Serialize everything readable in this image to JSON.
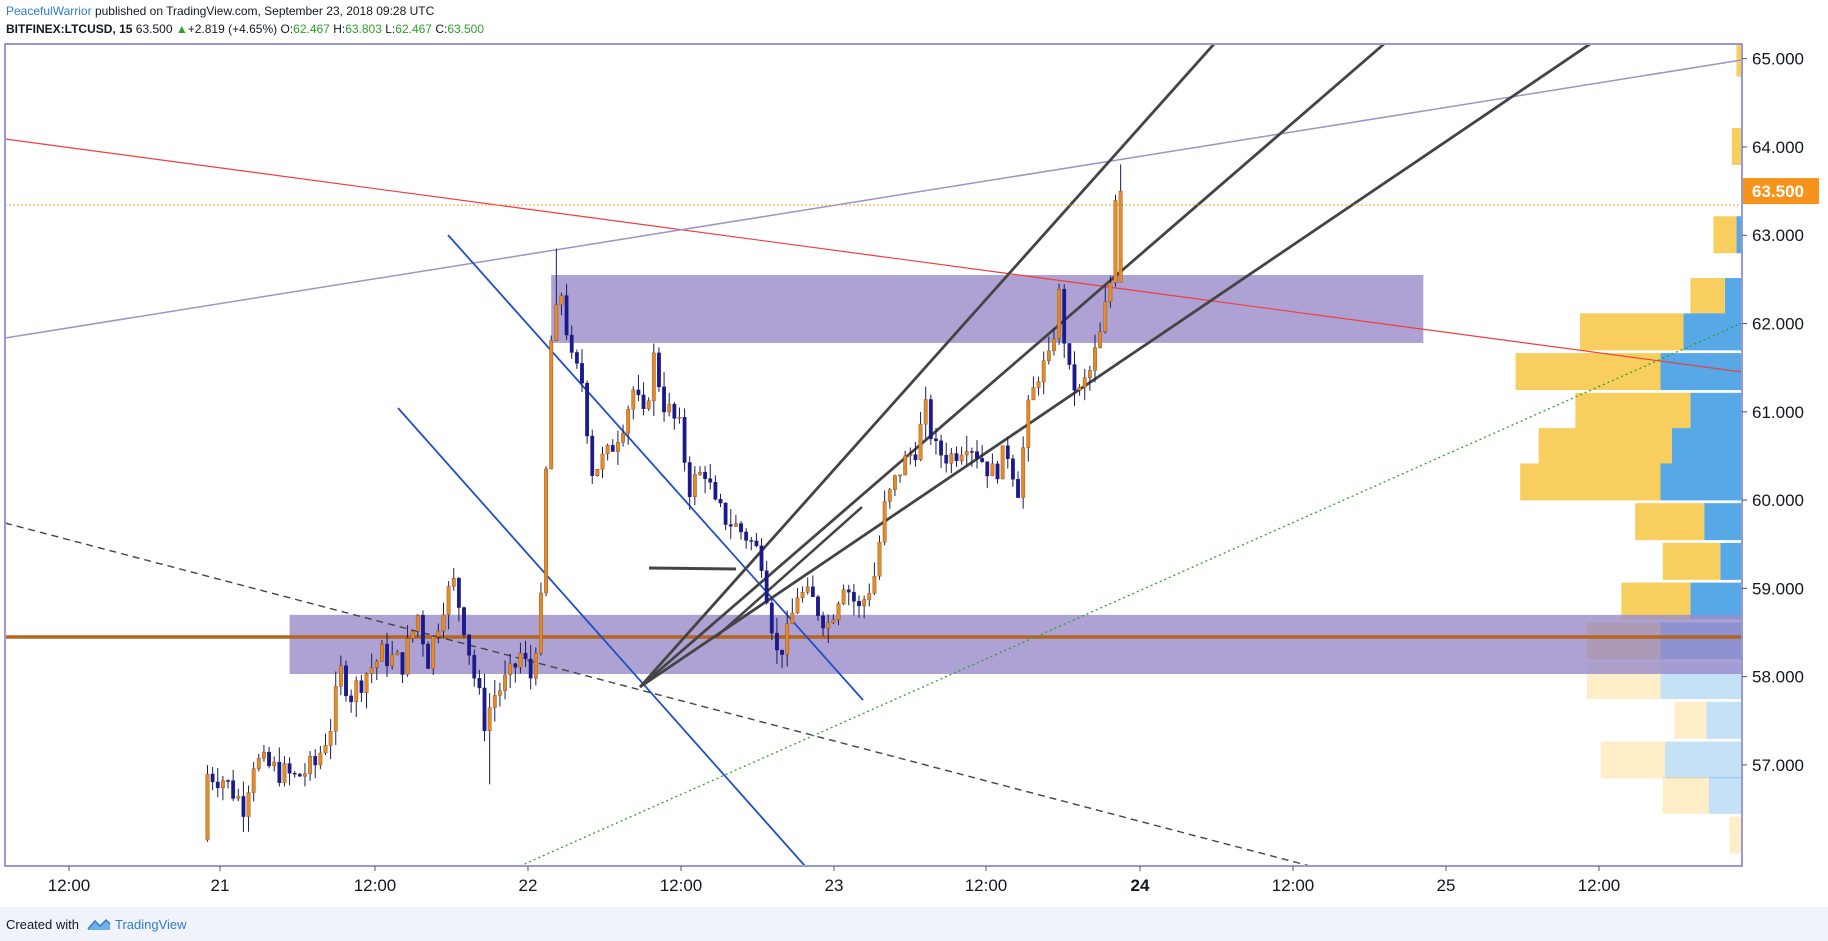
{
  "header": {
    "author": "PeacefulWarrior",
    "published_text": "published on TradingView.com, September 23, 2018 09:28 UTC",
    "symbol": "BITFINEX:LTCUSD, 15",
    "last": "63.500",
    "change": "+2.819 (+4.65%)",
    "open_label": "O:",
    "open": "62.467",
    "high_label": "H:",
    "high": "63.803",
    "low_label": "L:",
    "low": "62.467",
    "close_label": "C:",
    "close": "63.500"
  },
  "footer": {
    "created_with": "Created with",
    "brand": "TradingView"
  },
  "colors": {
    "up": "#e38b2a",
    "down": "#1a1a8c",
    "zone": "#9c8dca",
    "support_line": "#b5651d",
    "axis_text": "#131722",
    "price_tag": "#f7931a",
    "vp_up": "#56a8e6",
    "vp_down": "#f8cf5e"
  },
  "chart_data": {
    "type": "candlestick",
    "y_axis": {
      "ticks": [
        "57.000",
        "58.000",
        "59.000",
        "60.000",
        "61.000",
        "62.000",
        "63.000",
        "64.000",
        "65.000"
      ]
    },
    "x_axis": {
      "ticks": [
        "12:00",
        "21",
        "12:00",
        "22",
        "12:00",
        "23",
        "12:00",
        "24",
        "12:00",
        "25",
        "12:00"
      ],
      "bold": [
        "24"
      ]
    },
    "current_price": 63.5,
    "current_price_label": "63.500",
    "range_start": "2018-09-20 09:00",
    "bar_minutes": 15,
    "ohlc_anchor_points": [
      [
        0,
        56.15
      ],
      [
        1,
        56.9
      ],
      [
        4,
        56.85
      ],
      [
        8,
        56.55
      ],
      [
        10,
        57.05
      ],
      [
        14,
        56.95
      ],
      [
        18,
        56.85
      ],
      [
        22,
        57.0
      ],
      [
        25,
        57.45
      ],
      [
        27,
        58.05
      ],
      [
        29,
        57.8
      ],
      [
        32,
        58.05
      ],
      [
        35,
        58.25
      ],
      [
        39,
        58.15
      ],
      [
        42,
        58.7
      ],
      [
        44,
        58.2
      ],
      [
        47,
        58.85
      ],
      [
        49,
        59.05
      ],
      [
        51,
        58.6
      ],
      [
        53,
        58.0
      ],
      [
        55,
        57.5
      ],
      [
        57,
        57.8
      ],
      [
        60,
        58.0
      ],
      [
        62,
        58.25
      ],
      [
        64,
        58.0
      ],
      [
        66,
        58.8
      ],
      [
        68,
        61.8
      ],
      [
        70,
        62.35
      ],
      [
        72,
        61.55
      ],
      [
        74,
        61.35
      ],
      [
        76,
        60.35
      ],
      [
        79,
        60.5
      ],
      [
        82,
        60.9
      ],
      [
        84,
        61.25
      ],
      [
        86,
        60.9
      ],
      [
        88,
        61.6
      ],
      [
        90,
        61.1
      ],
      [
        93,
        60.8
      ],
      [
        95,
        60.15
      ],
      [
        98,
        60.35
      ],
      [
        100,
        59.9
      ],
      [
        103,
        59.75
      ],
      [
        106,
        59.6
      ],
      [
        109,
        59.35
      ],
      [
        112,
        58.25
      ],
      [
        114,
        58.45
      ],
      [
        116,
        58.95
      ],
      [
        119,
        58.85
      ],
      [
        122,
        58.6
      ],
      [
        125,
        59.1
      ],
      [
        128,
        58.75
      ],
      [
        131,
        59.15
      ],
      [
        133,
        59.9
      ],
      [
        136,
        60.35
      ],
      [
        139,
        60.6
      ],
      [
        141,
        61.0
      ],
      [
        143,
        60.55
      ],
      [
        146,
        60.5
      ],
      [
        149,
        60.7
      ],
      [
        151,
        60.55
      ],
      [
        154,
        60.3
      ],
      [
        157,
        60.55
      ],
      [
        159,
        60.15
      ],
      [
        161,
        61.0
      ],
      [
        163,
        61.45
      ],
      [
        165,
        61.55
      ],
      [
        167,
        62.3
      ],
      [
        169,
        61.4
      ],
      [
        171,
        61.2
      ],
      [
        173,
        61.45
      ],
      [
        175,
        61.85
      ],
      [
        177,
        62.47
      ],
      [
        178,
        63.5
      ]
    ],
    "last_bar": {
      "open": 62.467,
      "high": 63.803,
      "low": 62.467,
      "close": 63.5
    },
    "zones": [
      {
        "name": "resistance-zone",
        "from_bar": 67,
        "to_bar": 237,
        "low": 61.78,
        "high": 62.55
      },
      {
        "name": "support-zone",
        "from_bar": 16,
        "to_bar": 300,
        "low": 58.03,
        "high": 58.7
      }
    ],
    "volume_profile": [
      {
        "price": 65.0,
        "up": 0.02,
        "down": 0.0
      },
      {
        "price": 64.0,
        "up": 0.04,
        "down": 0.0
      },
      {
        "price": 63.0,
        "up": 0.1,
        "down": 0.02
      },
      {
        "price": 62.3,
        "up": 0.15,
        "down": 0.07
      },
      {
        "price": 61.9,
        "up": 0.45,
        "down": 0.25
      },
      {
        "price": 61.45,
        "up": 0.63,
        "down": 0.35
      },
      {
        "price": 61.0,
        "up": 0.5,
        "down": 0.22
      },
      {
        "price": 60.6,
        "up": 0.58,
        "down": 0.3
      },
      {
        "price": 60.2,
        "up": 0.61,
        "down": 0.35
      },
      {
        "price": 59.75,
        "up": 0.3,
        "down": 0.16
      },
      {
        "price": 59.3,
        "up": 0.25,
        "down": 0.09
      },
      {
        "price": 58.85,
        "up": 0.3,
        "down": 0.22
      },
      {
        "price": 58.4,
        "up": 0.32,
        "down": 0.35
      },
      {
        "price": 57.95,
        "up": 0.32,
        "down": 0.35,
        "faded": true
      },
      {
        "price": 57.5,
        "up": 0.14,
        "down": 0.15,
        "faded": true
      },
      {
        "price": 57.05,
        "up": 0.28,
        "down": 0.33,
        "faded": true
      },
      {
        "price": 56.65,
        "up": 0.2,
        "down": 0.14,
        "faded": true
      },
      {
        "price": 56.2,
        "up": 0.05,
        "down": 0.0,
        "faded": true
      }
    ]
  }
}
